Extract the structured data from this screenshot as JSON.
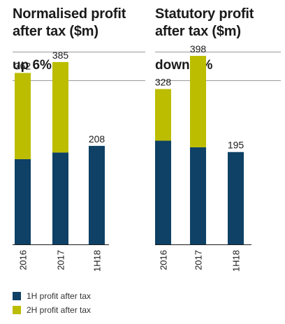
{
  "colors": {
    "first_half": "#0e4165",
    "second_half": "#bcbd00",
    "axis": "#1a1a1a",
    "rule": "#9a9a9a"
  },
  "legend": {
    "first_half_label": "1H profit after tax",
    "second_half_label": "2H profit after tax"
  },
  "chart_data": [
    {
      "type": "bar",
      "stacked": true,
      "title": "Normalised profit\nafter tax ($m)",
      "subtitle": "up 6%",
      "categories": [
        "2016",
        "2017",
        "1H18"
      ],
      "series": [
        {
          "name": "1H profit after tax",
          "values": [
            180,
            194,
            208
          ]
        },
        {
          "name": "2H profit after tax",
          "values": [
            182,
            191,
            0
          ]
        }
      ],
      "totals": [
        362,
        385,
        208
      ],
      "ylim": [
        0,
        460
      ]
    },
    {
      "type": "bar",
      "stacked": true,
      "title": "Statutory profit\nafter tax ($m)",
      "subtitle": "down 3%",
      "categories": [
        "2016",
        "2017",
        "1H18"
      ],
      "series": [
        {
          "name": "1H profit after tax",
          "values": [
            219,
            205,
            195
          ]
        },
        {
          "name": "2H profit after tax",
          "values": [
            109,
            193,
            0
          ]
        }
      ],
      "totals": [
        328,
        398,
        195
      ],
      "ylim": [
        0,
        460
      ]
    }
  ]
}
